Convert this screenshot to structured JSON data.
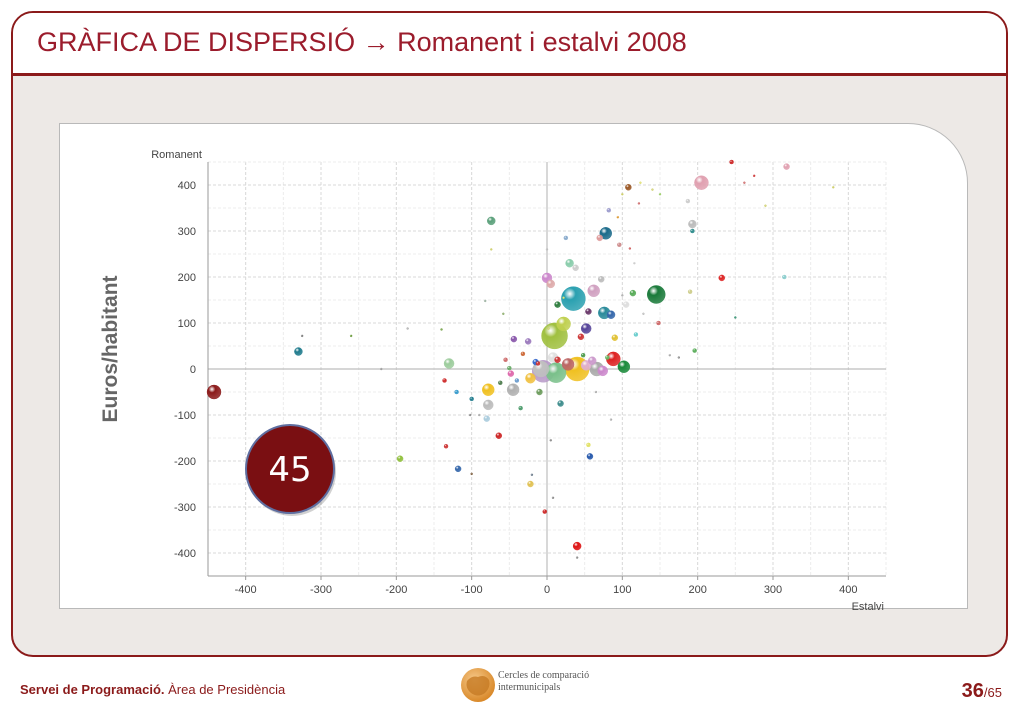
{
  "slide": {
    "title": "GRÀFICA DE DISPERSIÓ → Romanent i estalvi 2008",
    "badge_value": "45"
  },
  "footer": {
    "org_bold": "Servei de Programació.",
    "org_rest": " Àrea de Presidència",
    "logo_line1": "Cercles de comparació",
    "logo_line2": "intermunicipals",
    "page_current": "36",
    "page_total": "/65"
  },
  "colors": {
    "accent": "#8b1a1a",
    "title": "#9b1c2c",
    "badge": "#7a0f12",
    "background": "#ede9e6"
  },
  "chart_data": {
    "type": "scatter",
    "title": "",
    "xlabel": "Estalvi",
    "ylabel": "Romanent",
    "side_label": "Euros/habitant",
    "xlim": [
      -450,
      450
    ],
    "ylim": [
      -450,
      450
    ],
    "x_ticks": [
      -400,
      -300,
      -200,
      -100,
      0,
      100,
      200,
      300,
      400
    ],
    "y_ticks": [
      400,
      300,
      200,
      100,
      0,
      -100,
      -200,
      -300,
      -400
    ],
    "grid": true,
    "legend": "none",
    "points": [
      {
        "x": -442,
        "y": -50,
        "size": 7,
        "color": "#8b1a1a"
      },
      {
        "x": -330,
        "y": 38,
        "size": 4,
        "color": "#1e7a8c"
      },
      {
        "x": -325,
        "y": 72,
        "size": 1,
        "color": "#7a7a7a"
      },
      {
        "x": -260,
        "y": 72,
        "size": 1,
        "color": "#6a9a3a"
      },
      {
        "x": -220,
        "y": 0,
        "size": 1,
        "color": "#9a9a9a"
      },
      {
        "x": -195,
        "y": -195,
        "size": 3,
        "color": "#8fbf3a"
      },
      {
        "x": -185,
        "y": 88,
        "size": 1,
        "color": "#aaaaaa"
      },
      {
        "x": -140,
        "y": 86,
        "size": 1,
        "color": "#6a9a3a"
      },
      {
        "x": -136,
        "y": -25,
        "size": 2,
        "color": "#cc2222"
      },
      {
        "x": -130,
        "y": 12,
        "size": 5,
        "color": "#9ccc9c"
      },
      {
        "x": -134,
        "y": -168,
        "size": 2,
        "color": "#cc3333"
      },
      {
        "x": -120,
        "y": -50,
        "size": 2,
        "color": "#3399cc"
      },
      {
        "x": -118,
        "y": -217,
        "size": 3,
        "color": "#3366aa"
      },
      {
        "x": -100,
        "y": -65,
        "size": 2,
        "color": "#1e7a8c"
      },
      {
        "x": -102,
        "y": -100,
        "size": 1,
        "color": "#888888"
      },
      {
        "x": -100,
        "y": -228,
        "size": 1,
        "color": "#7a5a3a"
      },
      {
        "x": -90,
        "y": -100,
        "size": 1,
        "color": "#aaaaaa"
      },
      {
        "x": -82,
        "y": 148,
        "size": 1,
        "color": "#9ab0a0"
      },
      {
        "x": -74,
        "y": 322,
        "size": 4,
        "color": "#5aa07a"
      },
      {
        "x": -74,
        "y": 260,
        "size": 1,
        "color": "#cccc66"
      },
      {
        "x": -78,
        "y": -78,
        "size": 5,
        "color": "#bbbbbb"
      },
      {
        "x": -80,
        "y": -108,
        "size": 3,
        "color": "#aaccdd"
      },
      {
        "x": -78,
        "y": -45,
        "size": 6,
        "color": "#f0c020"
      },
      {
        "x": -64,
        "y": -145,
        "size": 3,
        "color": "#cc2222"
      },
      {
        "x": -62,
        "y": -30,
        "size": 2,
        "color": "#4a7a4a"
      },
      {
        "x": -58,
        "y": 120,
        "size": 1,
        "color": "#88aa66"
      },
      {
        "x": -55,
        "y": 20,
        "size": 2,
        "color": "#cc6666"
      },
      {
        "x": -50,
        "y": 2,
        "size": 2,
        "color": "#66aa66"
      },
      {
        "x": -45,
        "y": -45,
        "size": 6,
        "color": "#b0b0b0"
      },
      {
        "x": -44,
        "y": 65,
        "size": 3,
        "color": "#8855aa"
      },
      {
        "x": -48,
        "y": -10,
        "size": 3,
        "color": "#dd66aa"
      },
      {
        "x": -40,
        "y": -25,
        "size": 2,
        "color": "#6699cc"
      },
      {
        "x": -35,
        "y": -85,
        "size": 2,
        "color": "#4a9a6a"
      },
      {
        "x": -32,
        "y": 33,
        "size": 2,
        "color": "#cc6633"
      },
      {
        "x": -25,
        "y": 60,
        "size": 3,
        "color": "#9977bb"
      },
      {
        "x": -22,
        "y": -20,
        "size": 5,
        "color": "#f0c040"
      },
      {
        "x": -22,
        "y": -250,
        "size": 3,
        "color": "#e0c050"
      },
      {
        "x": -20,
        "y": -230,
        "size": 1,
        "color": "#667788"
      },
      {
        "x": -15,
        "y": 15,
        "size": 3,
        "color": "#3366cc"
      },
      {
        "x": -12,
        "y": 12,
        "size": 2,
        "color": "#cc3333"
      },
      {
        "x": -10,
        "y": -50,
        "size": 3,
        "color": "#6a9a5a"
      },
      {
        "x": -8,
        "y": 0,
        "size": 8,
        "color": "#c0c0c0"
      },
      {
        "x": -5,
        "y": -5,
        "size": 11,
        "color": "#b89ac8"
      },
      {
        "x": -3,
        "y": -310,
        "size": 2,
        "color": "#cc2222"
      },
      {
        "x": 0,
        "y": 260,
        "size": 1,
        "color": "#bbbbbb"
      },
      {
        "x": 0,
        "y": 198,
        "size": 5,
        "color": "#cc88cc"
      },
      {
        "x": 5,
        "y": 185,
        "size": 4,
        "color": "#ddaaaa"
      },
      {
        "x": 5,
        "y": -155,
        "size": 1,
        "color": "#888888"
      },
      {
        "x": 2,
        "y": 88,
        "size": 1,
        "color": "#cccc66"
      },
      {
        "x": 8,
        "y": 25,
        "size": 5,
        "color": "#e0e0e0"
      },
      {
        "x": 8,
        "y": -280,
        "size": 1,
        "color": "#888888"
      },
      {
        "x": 10,
        "y": 72,
        "size": 13,
        "color": "#a0c040"
      },
      {
        "x": 12,
        "y": -8,
        "size": 10,
        "color": "#7ac08a"
      },
      {
        "x": 14,
        "y": 140,
        "size": 3,
        "color": "#2a7a3a"
      },
      {
        "x": 14,
        "y": 20,
        "size": 3,
        "color": "#cc3333"
      },
      {
        "x": 18,
        "y": -75,
        "size": 3,
        "color": "#3a8a8a"
      },
      {
        "x": 22,
        "y": 98,
        "size": 7,
        "color": "#c0d050"
      },
      {
        "x": 22,
        "y": 155,
        "size": 1,
        "color": "#dddd66"
      },
      {
        "x": 25,
        "y": 285,
        "size": 2,
        "color": "#88aacc"
      },
      {
        "x": 28,
        "y": 10,
        "size": 6,
        "color": "#bb6666"
      },
      {
        "x": 30,
        "y": 230,
        "size": 4,
        "color": "#88ccaa"
      },
      {
        "x": 35,
        "y": 153,
        "size": 12,
        "color": "#2aa0b0"
      },
      {
        "x": 38,
        "y": 220,
        "size": 3,
        "color": "#cccccc"
      },
      {
        "x": 40,
        "y": 0,
        "size": 12,
        "color": "#f0c020"
      },
      {
        "x": 40,
        "y": -385,
        "size": 4,
        "color": "#dd1111"
      },
      {
        "x": 40,
        "y": -410,
        "size": 1,
        "color": "#888888"
      },
      {
        "x": 45,
        "y": 70,
        "size": 3,
        "color": "#cc3333"
      },
      {
        "x": 48,
        "y": 30,
        "size": 2,
        "color": "#4a9a4a"
      },
      {
        "x": 52,
        "y": 88,
        "size": 5,
        "color": "#554499"
      },
      {
        "x": 52,
        "y": 8,
        "size": 5,
        "color": "#e0b0d0"
      },
      {
        "x": 55,
        "y": 125,
        "size": 3,
        "color": "#663366"
      },
      {
        "x": 55,
        "y": -165,
        "size": 2,
        "color": "#e0e060"
      },
      {
        "x": 57,
        "y": -190,
        "size": 3,
        "color": "#2255aa"
      },
      {
        "x": 60,
        "y": 18,
        "size": 4,
        "color": "#cc99cc"
      },
      {
        "x": 62,
        "y": 170,
        "size": 6,
        "color": "#d0a0c0"
      },
      {
        "x": 65,
        "y": -50,
        "size": 1,
        "color": "#aaaaaa"
      },
      {
        "x": 66,
        "y": 0,
        "size": 7,
        "color": "#aaaaaa"
      },
      {
        "x": 70,
        "y": 285,
        "size": 3,
        "color": "#dd9999"
      },
      {
        "x": 72,
        "y": 195,
        "size": 3,
        "color": "#bbbbbb"
      },
      {
        "x": 74,
        "y": -4,
        "size": 5,
        "color": "#cc88cc"
      },
      {
        "x": 76,
        "y": 122,
        "size": 6,
        "color": "#2a8a9a"
      },
      {
        "x": 78,
        "y": 295,
        "size": 6,
        "color": "#1a6a8a"
      },
      {
        "x": 80,
        "y": 25,
        "size": 2,
        "color": "#66bb66"
      },
      {
        "x": 82,
        "y": 345,
        "size": 2,
        "color": "#9999cc"
      },
      {
        "x": 85,
        "y": 118,
        "size": 4,
        "color": "#3366aa"
      },
      {
        "x": 85,
        "y": -110,
        "size": 1,
        "color": "#aaaaaa"
      },
      {
        "x": 88,
        "y": 22,
        "size": 7,
        "color": "#dd2222"
      },
      {
        "x": 90,
        "y": 68,
        "size": 3,
        "color": "#e0c030"
      },
      {
        "x": 94,
        "y": 330,
        "size": 1,
        "color": "#dd9933"
      },
      {
        "x": 96,
        "y": 270,
        "size": 2,
        "color": "#cc8888"
      },
      {
        "x": 100,
        "y": 380,
        "size": 1,
        "color": "#cccc66"
      },
      {
        "x": 100,
        "y": 160,
        "size": 1,
        "color": "#aaaaaa"
      },
      {
        "x": 102,
        "y": 5,
        "size": 6,
        "color": "#1a8a3a"
      },
      {
        "x": 105,
        "y": 140,
        "size": 3,
        "color": "#dddddd"
      },
      {
        "x": 108,
        "y": 395,
        "size": 3,
        "color": "#995522"
      },
      {
        "x": 110,
        "y": 262,
        "size": 1,
        "color": "#cc5555"
      },
      {
        "x": 114,
        "y": 165,
        "size": 3,
        "color": "#55aa55"
      },
      {
        "x": 116,
        "y": 230,
        "size": 1,
        "color": "#cccccc"
      },
      {
        "x": 118,
        "y": 75,
        "size": 2,
        "color": "#66cccc"
      },
      {
        "x": 122,
        "y": 360,
        "size": 1,
        "color": "#cc6666"
      },
      {
        "x": 124,
        "y": 405,
        "size": 1,
        "color": "#dddd66"
      },
      {
        "x": 128,
        "y": 120,
        "size": 1,
        "color": "#bbbbbb"
      },
      {
        "x": 140,
        "y": 390,
        "size": 1,
        "color": "#cccc66"
      },
      {
        "x": 145,
        "y": 162,
        "size": 9,
        "color": "#1a7a3a"
      },
      {
        "x": 148,
        "y": 100,
        "size": 2,
        "color": "#cc6666"
      },
      {
        "x": 150,
        "y": 380,
        "size": 1,
        "color": "#99cc66"
      },
      {
        "x": 163,
        "y": 30,
        "size": 1,
        "color": "#aaaaaa"
      },
      {
        "x": 175,
        "y": 25,
        "size": 1,
        "color": "#888888"
      },
      {
        "x": 187,
        "y": 365,
        "size": 2,
        "color": "#cccccc"
      },
      {
        "x": 190,
        "y": 168,
        "size": 2,
        "color": "#cccc88"
      },
      {
        "x": 193,
        "y": 300,
        "size": 2,
        "color": "#2a8a8a"
      },
      {
        "x": 193,
        "y": 315,
        "size": 4,
        "color": "#bbbbbb"
      },
      {
        "x": 196,
        "y": 40,
        "size": 2,
        "color": "#55aa55"
      },
      {
        "x": 205,
        "y": 405,
        "size": 7,
        "color": "#e0a0b0"
      },
      {
        "x": 232,
        "y": 198,
        "size": 3,
        "color": "#dd2222"
      },
      {
        "x": 245,
        "y": 450,
        "size": 2,
        "color": "#cc2222"
      },
      {
        "x": 250,
        "y": 112,
        "size": 1,
        "color": "#2a8a6a"
      },
      {
        "x": 262,
        "y": 405,
        "size": 1,
        "color": "#cc6666"
      },
      {
        "x": 275,
        "y": 420,
        "size": 1,
        "color": "#cc3333"
      },
      {
        "x": 290,
        "y": 355,
        "size": 1,
        "color": "#cccc66"
      },
      {
        "x": 315,
        "y": 200,
        "size": 2,
        "color": "#88cccc"
      },
      {
        "x": 318,
        "y": 440,
        "size": 3,
        "color": "#e0a0b0"
      },
      {
        "x": 380,
        "y": 395,
        "size": 1,
        "color": "#cccc66"
      }
    ]
  }
}
